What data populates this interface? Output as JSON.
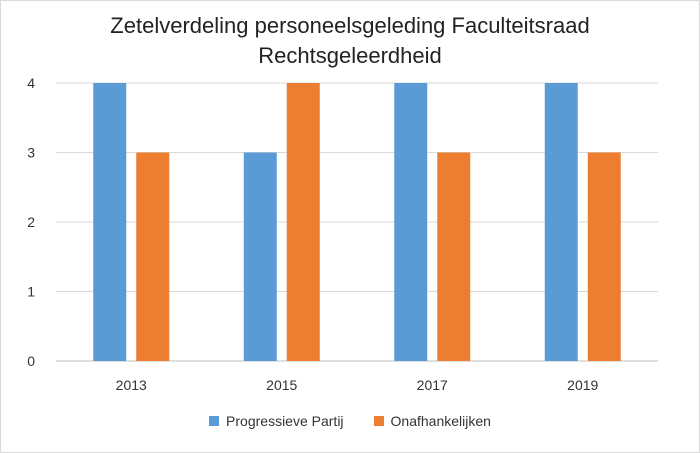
{
  "chart_data": {
    "type": "bar",
    "title": [
      "Zetelverdeling personeelsgeleding Faculteitsraad",
      "Rechtsgeleerdheid"
    ],
    "categories": [
      "2013",
      "2015",
      "2017",
      "2019"
    ],
    "series": [
      {
        "name": "Progressieve Partij",
        "values": [
          4,
          3,
          4,
          4
        ],
        "color": "#5b9bd5"
      },
      {
        "name": "Onafhankelijken",
        "values": [
          3,
          4,
          3,
          3
        ],
        "color": "#ed7d31"
      }
    ],
    "ylim": [
      0,
      4
    ],
    "yticks": [
      "0",
      "1",
      "2",
      "3",
      "4"
    ],
    "grid": true,
    "legend_position": "bottom"
  }
}
